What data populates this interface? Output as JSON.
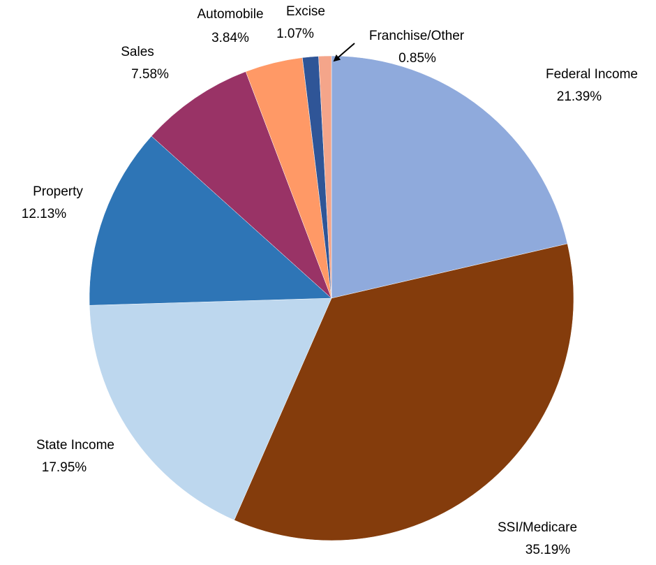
{
  "chart_data": {
    "type": "pie",
    "categories": [
      "Federal Income",
      "SSI/Medicare",
      "State Income",
      "Property",
      "Sales",
      "Automobile",
      "Excise",
      "Franchise/Other"
    ],
    "values": [
      21.39,
      35.19,
      17.95,
      12.13,
      7.58,
      3.84,
      1.07,
      0.85
    ],
    "value_labels": [
      "21.39%",
      "35.19%",
      "17.95%",
      "12.13%",
      "7.58%",
      "3.84%",
      "1.07%",
      "0.85%"
    ],
    "colors": [
      "#8faadc",
      "#843c0c",
      "#bdd7ee",
      "#2e75b6",
      "#993366",
      "#ff9966",
      "#2f5597",
      "#f4a58a"
    ]
  }
}
